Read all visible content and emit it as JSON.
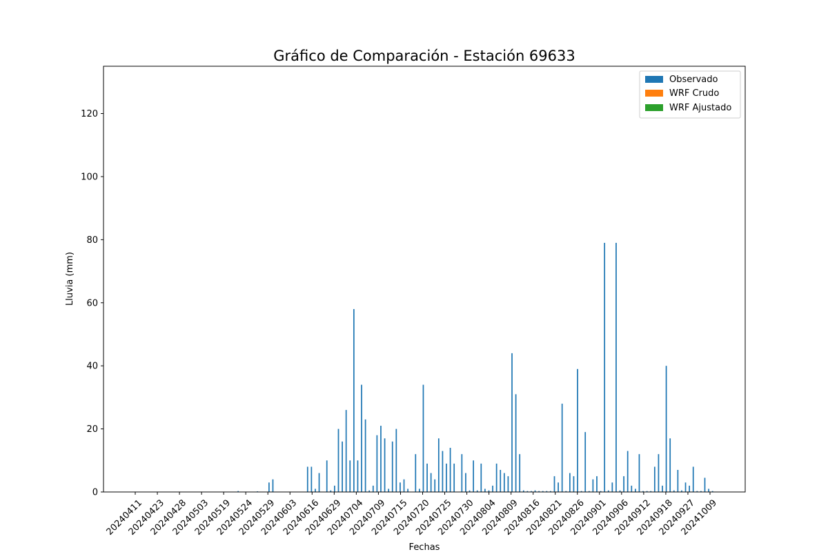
{
  "chart_data": {
    "type": "bar",
    "title": "Gráfico de Comparación - Estación 69633",
    "xlabel": "Fechas",
    "ylabel": "Lluvia (mm)",
    "ylim": [
      0,
      135
    ],
    "yticks": [
      0,
      20,
      40,
      60,
      80,
      100,
      120
    ],
    "legend_position": "top-right",
    "grid": false,
    "xtick_labels": [
      "20240411",
      "20240423",
      "20240428",
      "20240503",
      "20240519",
      "20240524",
      "20240529",
      "20240603",
      "20240616",
      "20240629",
      "20240704",
      "20240709",
      "20240715",
      "20240720",
      "20240725",
      "20240730",
      "20240804",
      "20240809",
      "20240816",
      "20240821",
      "20240826",
      "20240901",
      "20240906",
      "20240912",
      "20240918",
      "20240927",
      "20241009"
    ],
    "colors": {
      "observado": "#1f77b4",
      "wrf_crudo": "#ff7f0e",
      "wrf_ajustado": "#2ca02c"
    },
    "series": [
      {
        "name": "Observado",
        "color": "#1f77b4",
        "values": [
          0,
          0,
          0,
          0,
          0,
          0,
          0,
          0,
          0,
          0,
          0,
          0,
          0,
          0,
          0,
          0,
          0,
          0,
          0,
          0,
          0,
          0,
          0,
          0,
          0,
          0,
          0,
          0.3,
          0,
          0,
          0,
          0,
          0.2,
          0,
          0,
          3,
          4,
          0,
          0,
          0,
          0,
          0,
          0,
          0,
          0,
          8,
          8,
          1,
          6,
          0,
          10,
          0.5,
          2,
          20,
          16,
          26,
          10,
          58,
          10,
          34,
          23,
          0.5,
          2,
          18,
          21,
          17,
          1,
          16,
          20,
          3,
          4,
          1,
          0,
          12,
          1,
          34,
          9,
          6,
          4,
          17,
          13,
          9,
          14,
          9,
          0,
          12,
          6,
          0.5,
          10,
          0.5,
          9,
          1,
          0.5,
          2,
          9,
          7,
          6,
          5,
          44,
          31,
          12,
          0.5,
          0.3,
          0.3,
          0.5,
          0.3,
          0.3,
          0.3,
          0.3,
          5,
          3,
          28,
          0.3,
          6,
          5,
          39,
          0.3,
          19,
          0.3,
          4,
          5,
          0.3,
          79,
          0.5,
          3,
          79,
          0.5,
          5,
          13,
          2,
          1,
          12,
          0.3,
          0.3,
          0.3,
          8,
          12,
          2,
          40,
          17,
          0.5,
          7,
          0.5,
          3,
          2,
          8,
          0.3,
          0.3,
          4.5,
          1,
          0.3
        ]
      },
      {
        "name": "WRF Crudo",
        "color": "#ff7f0e",
        "values": []
      },
      {
        "name": "WRF Ajustado",
        "color": "#2ca02c",
        "values": []
      }
    ]
  }
}
